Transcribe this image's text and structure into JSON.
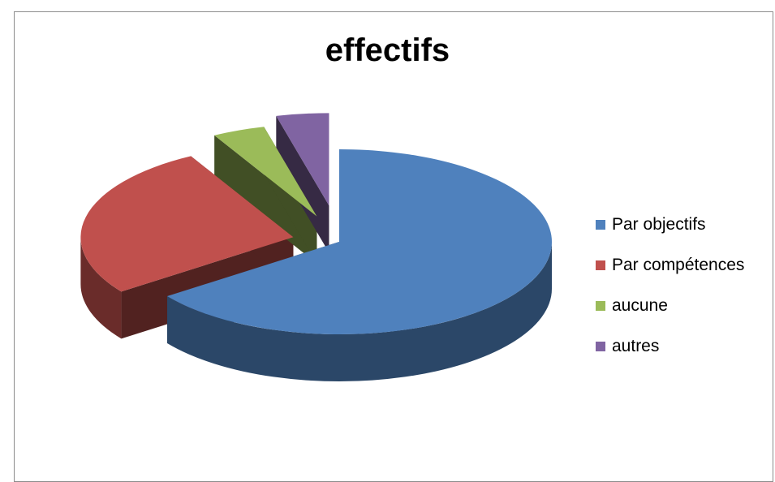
{
  "chart_data": {
    "type": "pie",
    "title": "effectifs",
    "categories": [
      "Par objectifs",
      "Par compétences",
      "aucune",
      "autres"
    ],
    "values": [
      65,
      27,
      4,
      4
    ],
    "colors": [
      "#4f81bd",
      "#c0504d",
      "#9bbb59",
      "#8064a2"
    ],
    "legend_position": "right",
    "style": "3d-exploded"
  }
}
